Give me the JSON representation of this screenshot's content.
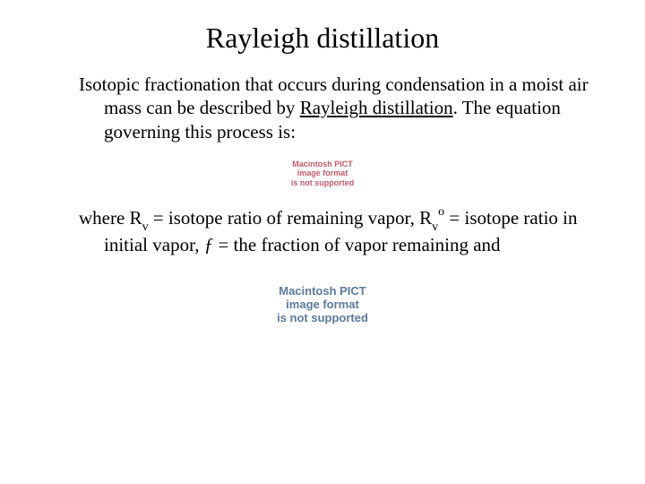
{
  "title": "Rayleigh distillation",
  "para1_a": "Isotopic fractionation that occurs during condensation in a moist air mass can be described by ",
  "para1_b": "Rayleigh distillation",
  "para1_c": ". The equation governing this process is:",
  "pict_l1": "Macintosh PICT",
  "pict_l2": "image format",
  "pict_l3": "is not supported",
  "para2_a": "where R",
  "para2_b": "v",
  "para2_c": " = isotope ratio of remaining vapor, R",
  "para2_d": "v",
  "para2_e": "o",
  "para2_f": " = isotope ratio in initial vapor, ",
  "para2_g": "ƒ",
  "para2_h": " = the fraction of vapor remaining and",
  "colors": {
    "bg": "#ffffff",
    "text": "#000000",
    "pict_small": "#c55a6a",
    "pict_large": "#5b7a9a"
  },
  "fonts": {
    "title_size": 32,
    "body_size": 21,
    "pict_small_size": 9,
    "pict_large_size": 13
  }
}
